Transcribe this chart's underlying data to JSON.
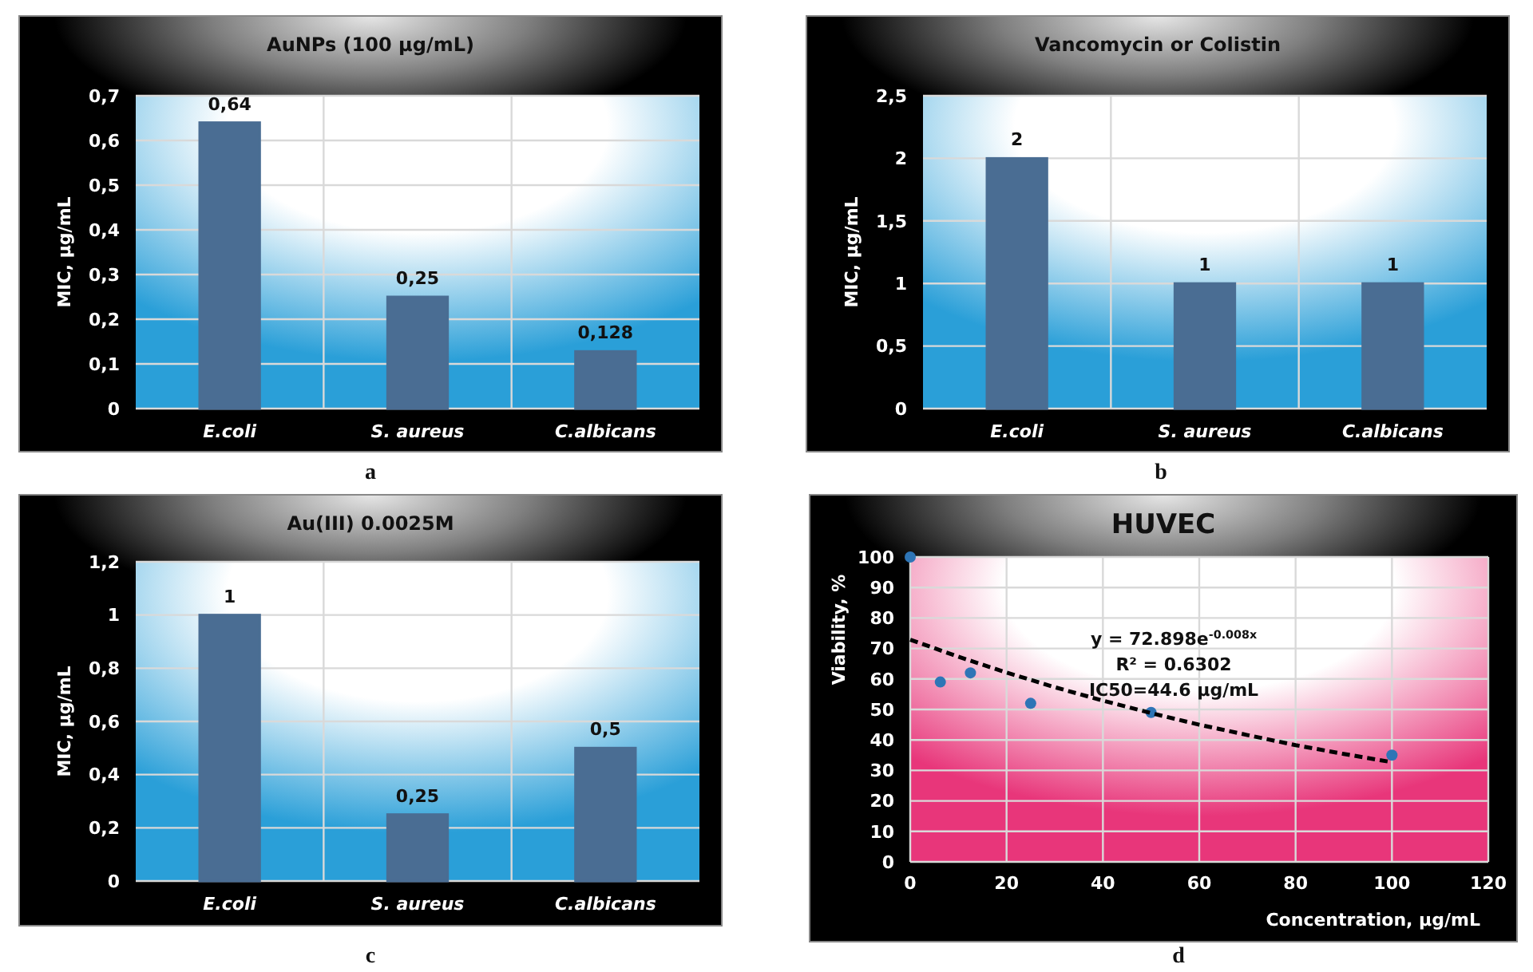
{
  "chart_data": [
    {
      "type": "bar",
      "title": "AuNPs (100 µg/mL)",
      "ylabel": "MIC, µg/mL",
      "categories": [
        "E.coli",
        "S. aureus",
        "C.albicans"
      ],
      "values": [
        0.64,
        0.25,
        0.128
      ],
      "value_labels": [
        "0,64",
        "0,25",
        "0,128"
      ],
      "color": "#4a6d93",
      "ylim": [
        0,
        0.7
      ],
      "yticks": [
        {
          "value": 0,
          "label": "0"
        },
        {
          "value": 0.1,
          "label": "0,1"
        },
        {
          "value": 0.2,
          "label": "0,2"
        },
        {
          "value": 0.3,
          "label": "0,3"
        },
        {
          "value": 0.4,
          "label": "0,4"
        },
        {
          "value": 0.5,
          "label": "0,5"
        },
        {
          "value": 0.6,
          "label": "0,6"
        },
        {
          "value": 0.7,
          "label": "0,7"
        }
      ],
      "grid": true,
      "annotations": [
        "a"
      ]
    },
    {
      "type": "bar",
      "title": "Vancomycin or Colistin",
      "ylabel": "MIC, µg/mL",
      "categories": [
        "E.coli",
        "S. aureus",
        "C.albicans"
      ],
      "values": [
        2,
        1,
        1
      ],
      "value_labels": [
        "2",
        "1",
        "1"
      ],
      "color": "#4a6d93",
      "ylim": [
        0,
        2.5
      ],
      "yticks": [
        0,
        {
          "value": 0.5,
          "label": "0,5"
        },
        1,
        {
          "value": 1.5,
          "label": "1,5"
        },
        2,
        {
          "value": 2.5,
          "label": "2,5"
        }
      ],
      "grid": true,
      "annotations": [
        "b"
      ]
    },
    {
      "type": "bar",
      "title": "Au(III)   0.0025M",
      "ylabel": "MIC, µg/mL",
      "categories": [
        "E.coli",
        "S. aureus",
        "C.albicans"
      ],
      "values": [
        1,
        0.25,
        0.5
      ],
      "value_labels": [
        "1",
        "0,25",
        "0,5"
      ],
      "color": "#4a6d93",
      "ylim": [
        0,
        1.2
      ],
      "yticks": [
        0,
        {
          "value": 0.2,
          "label": "0,2"
        },
        {
          "value": 0.4,
          "label": "0,4"
        },
        {
          "value": 0.6,
          "label": "0,6"
        },
        {
          "value": 0.8,
          "label": "0,8"
        },
        1,
        {
          "value": 1.2,
          "label": "1,2"
        }
      ],
      "grid": true,
      "annotations": [
        "c"
      ]
    },
    {
      "type": "scatter",
      "title": "HUVEC",
      "xlabel": "Concentration, µg/mL",
      "ylabel": "Viability, %",
      "series": [
        {
          "type": "scatter",
          "x": [
            0,
            6.25,
            12.5,
            25,
            50,
            100
          ],
          "values": [
            100,
            59,
            62,
            52,
            49,
            35
          ],
          "color": "#2e75b6",
          "marker": "circle"
        },
        {
          "type": "line",
          "x": [
            0,
            10,
            20,
            30,
            40,
            50,
            60,
            70,
            80,
            90,
            100
          ],
          "values": [
            72.9,
            67.3,
            62.1,
            57.3,
            52.9,
            48.8,
            45.0,
            41.6,
            38.3,
            35.4,
            32.7
          ],
          "color": "#000000",
          "line_style": "dashed",
          "marker": "none"
        }
      ],
      "xlim": [
        0,
        120
      ],
      "xticks": [
        0,
        20,
        40,
        60,
        80,
        100,
        120
      ],
      "ylim": [
        0,
        100
      ],
      "yticks": [
        0,
        10,
        20,
        30,
        40,
        50,
        60,
        70,
        80,
        90,
        100
      ],
      "grid": true,
      "annotations": [
        "y = 72.898e$^{-0.008x}$",
        "R² = 0.6302",
        "IC50=44.6 µg/mL",
        "d"
      ]
    }
  ]
}
